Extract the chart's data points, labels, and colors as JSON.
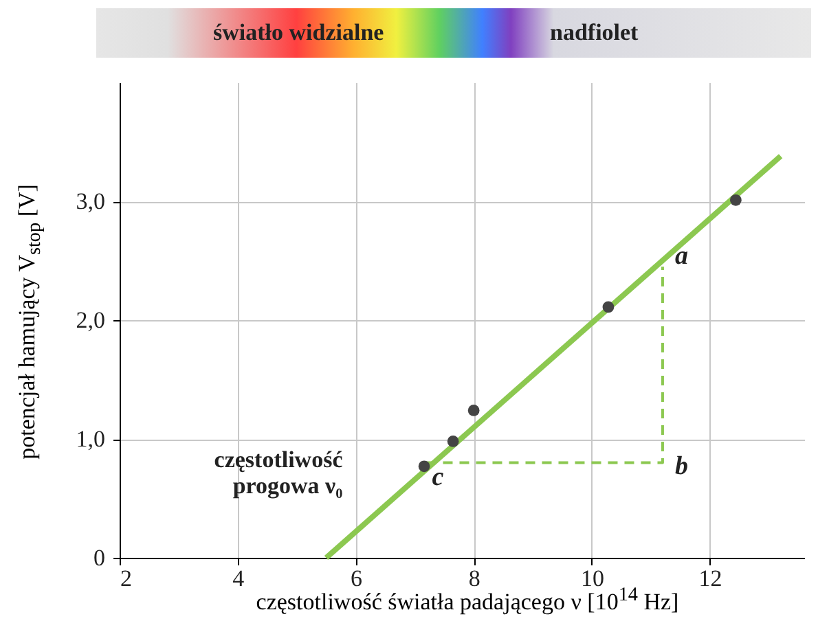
{
  "chart_data": {
    "type": "scatter",
    "xlabel": "częstotliwość światła padającego ν [10$^{14}$ Hz]",
    "ylabel": "potencjał hamujący V$_{stop}$ [V]",
    "xlim": [
      2,
      13.6
    ],
    "ylim": [
      0,
      4
    ],
    "xticks": [
      2,
      4,
      6,
      8,
      10,
      12
    ],
    "yticks": [
      {
        "value": 0,
        "label": "0"
      },
      {
        "value": 1,
        "label": "1,0"
      },
      {
        "value": 2,
        "label": "2,0"
      },
      {
        "value": 3,
        "label": "3,0"
      }
    ],
    "grid": true,
    "series": [
      {
        "type": "line",
        "line_style": "solid",
        "color": "#8cc850",
        "x": [
          5.5,
          13.2
        ],
        "values": [
          0,
          3.38
        ]
      },
      {
        "type": "line",
        "line_style": "dashed",
        "color": "#8cc850",
        "x": [
          7.2,
          11.2,
          11.2
        ],
        "values": [
          0.8,
          0.8,
          2.45
        ]
      },
      {
        "marker": "circle",
        "color": "#444444",
        "x": [
          7.16,
          7.65,
          8.0,
          10.28,
          12.44
        ],
        "values": [
          0.77,
          0.98,
          1.24,
          2.11,
          3.01
        ]
      }
    ],
    "annotations": [
      "światło widzialne",
      "nadfiolet",
      {
        "text": "częstotliwość\nprogowa ν₀",
        "x": 5.5,
        "y": 0
      },
      {
        "text": "a",
        "x": 11.2,
        "y": 2.45
      },
      {
        "text": "b",
        "x": 11.2,
        "y": 0.8
      },
      {
        "text": "c",
        "x": 7.2,
        "y": 0.8
      }
    ]
  }
}
